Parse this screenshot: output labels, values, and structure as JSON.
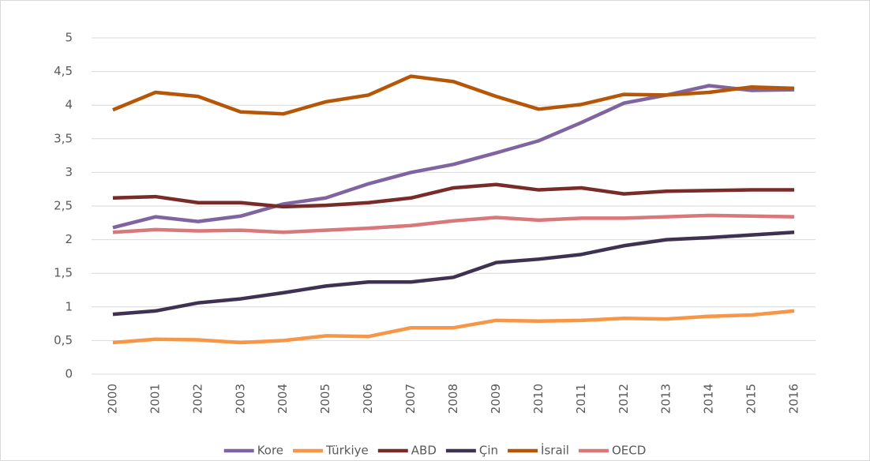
{
  "chart_data": {
    "type": "line",
    "categories": [
      "2000",
      "2001",
      "2002",
      "2003",
      "2004",
      "2005",
      "2006",
      "2007",
      "2008",
      "2009",
      "2010",
      "2011",
      "2012",
      "2013",
      "2014",
      "2015",
      "2016"
    ],
    "series": [
      {
        "name": "Kore",
        "color": "#8064a2",
        "values": [
          2.18,
          2.34,
          2.27,
          2.35,
          2.53,
          2.62,
          2.83,
          3.0,
          3.12,
          3.29,
          3.47,
          3.74,
          4.03,
          4.15,
          4.29,
          4.22,
          4.23
        ]
      },
      {
        "name": "Türkiye",
        "color": "#f79646",
        "values": [
          0.47,
          0.52,
          0.51,
          0.47,
          0.5,
          0.57,
          0.56,
          0.69,
          0.69,
          0.8,
          0.79,
          0.8,
          0.83,
          0.82,
          0.86,
          0.88,
          0.94
        ]
      },
      {
        "name": "ABD",
        "color": "#772c2a",
        "values": [
          2.62,
          2.64,
          2.55,
          2.55,
          2.49,
          2.51,
          2.55,
          2.62,
          2.77,
          2.82,
          2.74,
          2.77,
          2.68,
          2.72,
          2.73,
          2.74,
          2.74
        ]
      },
      {
        "name": "Çin",
        "color": "#3f3151",
        "values": [
          0.89,
          0.94,
          1.06,
          1.12,
          1.21,
          1.31,
          1.37,
          1.37,
          1.44,
          1.66,
          1.71,
          1.78,
          1.91,
          2.0,
          2.03,
          2.07,
          2.11
        ]
      },
      {
        "name": "İsrail",
        "color": "#b65708",
        "values": [
          3.93,
          4.19,
          4.13,
          3.9,
          3.87,
          4.05,
          4.15,
          4.43,
          4.35,
          4.13,
          3.94,
          4.01,
          4.16,
          4.15,
          4.19,
          4.27,
          4.25
        ]
      },
      {
        "name": "OECD",
        "color": "#d9787a",
        "values": [
          2.11,
          2.15,
          2.13,
          2.14,
          2.11,
          2.14,
          2.17,
          2.21,
          2.28,
          2.33,
          2.29,
          2.32,
          2.32,
          2.34,
          2.36,
          2.35,
          2.34
        ]
      }
    ],
    "ylim": [
      0,
      5
    ],
    "yticks": [
      0,
      {
        "value": 0.5,
        "label": "0,5"
      },
      1,
      {
        "value": 1.5,
        "label": "1,5"
      },
      2,
      {
        "value": 2.5,
        "label": "2,5"
      },
      3,
      {
        "value": 3.5,
        "label": "3,5"
      },
      4,
      {
        "value": 4.5,
        "label": "4,5"
      },
      5
    ],
    "grid": true,
    "legend": "bottom"
  }
}
